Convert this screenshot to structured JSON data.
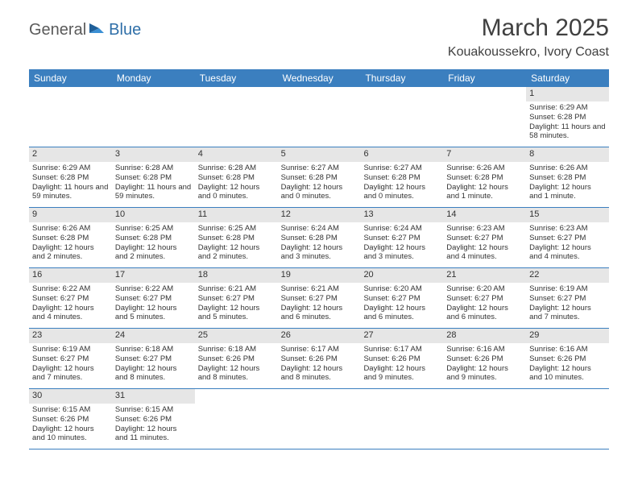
{
  "logo": {
    "text1": "General",
    "text2": "Blue"
  },
  "title": "March 2025",
  "location": "Kouakoussekro, Ivory Coast",
  "colors": {
    "header_bg": "#3b7fbf",
    "header_text": "#ffffff",
    "daynum_bg": "#e6e6e6",
    "border": "#3b7fbf",
    "body_text": "#333333",
    "logo_gray": "#5a5a5a",
    "logo_blue": "#2f6fa8"
  },
  "dayNames": [
    "Sunday",
    "Monday",
    "Tuesday",
    "Wednesday",
    "Thursday",
    "Friday",
    "Saturday"
  ],
  "weeks": [
    [
      null,
      null,
      null,
      null,
      null,
      null,
      {
        "n": "1",
        "sr": "Sunrise: 6:29 AM",
        "ss": "Sunset: 6:28 PM",
        "dl": "Daylight: 11 hours and 58 minutes."
      }
    ],
    [
      {
        "n": "2",
        "sr": "Sunrise: 6:29 AM",
        "ss": "Sunset: 6:28 PM",
        "dl": "Daylight: 11 hours and 59 minutes."
      },
      {
        "n": "3",
        "sr": "Sunrise: 6:28 AM",
        "ss": "Sunset: 6:28 PM",
        "dl": "Daylight: 11 hours and 59 minutes."
      },
      {
        "n": "4",
        "sr": "Sunrise: 6:28 AM",
        "ss": "Sunset: 6:28 PM",
        "dl": "Daylight: 12 hours and 0 minutes."
      },
      {
        "n": "5",
        "sr": "Sunrise: 6:27 AM",
        "ss": "Sunset: 6:28 PM",
        "dl": "Daylight: 12 hours and 0 minutes."
      },
      {
        "n": "6",
        "sr": "Sunrise: 6:27 AM",
        "ss": "Sunset: 6:28 PM",
        "dl": "Daylight: 12 hours and 0 minutes."
      },
      {
        "n": "7",
        "sr": "Sunrise: 6:26 AM",
        "ss": "Sunset: 6:28 PM",
        "dl": "Daylight: 12 hours and 1 minute."
      },
      {
        "n": "8",
        "sr": "Sunrise: 6:26 AM",
        "ss": "Sunset: 6:28 PM",
        "dl": "Daylight: 12 hours and 1 minute."
      }
    ],
    [
      {
        "n": "9",
        "sr": "Sunrise: 6:26 AM",
        "ss": "Sunset: 6:28 PM",
        "dl": "Daylight: 12 hours and 2 minutes."
      },
      {
        "n": "10",
        "sr": "Sunrise: 6:25 AM",
        "ss": "Sunset: 6:28 PM",
        "dl": "Daylight: 12 hours and 2 minutes."
      },
      {
        "n": "11",
        "sr": "Sunrise: 6:25 AM",
        "ss": "Sunset: 6:28 PM",
        "dl": "Daylight: 12 hours and 2 minutes."
      },
      {
        "n": "12",
        "sr": "Sunrise: 6:24 AM",
        "ss": "Sunset: 6:28 PM",
        "dl": "Daylight: 12 hours and 3 minutes."
      },
      {
        "n": "13",
        "sr": "Sunrise: 6:24 AM",
        "ss": "Sunset: 6:27 PM",
        "dl": "Daylight: 12 hours and 3 minutes."
      },
      {
        "n": "14",
        "sr": "Sunrise: 6:23 AM",
        "ss": "Sunset: 6:27 PM",
        "dl": "Daylight: 12 hours and 4 minutes."
      },
      {
        "n": "15",
        "sr": "Sunrise: 6:23 AM",
        "ss": "Sunset: 6:27 PM",
        "dl": "Daylight: 12 hours and 4 minutes."
      }
    ],
    [
      {
        "n": "16",
        "sr": "Sunrise: 6:22 AM",
        "ss": "Sunset: 6:27 PM",
        "dl": "Daylight: 12 hours and 4 minutes."
      },
      {
        "n": "17",
        "sr": "Sunrise: 6:22 AM",
        "ss": "Sunset: 6:27 PM",
        "dl": "Daylight: 12 hours and 5 minutes."
      },
      {
        "n": "18",
        "sr": "Sunrise: 6:21 AM",
        "ss": "Sunset: 6:27 PM",
        "dl": "Daylight: 12 hours and 5 minutes."
      },
      {
        "n": "19",
        "sr": "Sunrise: 6:21 AM",
        "ss": "Sunset: 6:27 PM",
        "dl": "Daylight: 12 hours and 6 minutes."
      },
      {
        "n": "20",
        "sr": "Sunrise: 6:20 AM",
        "ss": "Sunset: 6:27 PM",
        "dl": "Daylight: 12 hours and 6 minutes."
      },
      {
        "n": "21",
        "sr": "Sunrise: 6:20 AM",
        "ss": "Sunset: 6:27 PM",
        "dl": "Daylight: 12 hours and 6 minutes."
      },
      {
        "n": "22",
        "sr": "Sunrise: 6:19 AM",
        "ss": "Sunset: 6:27 PM",
        "dl": "Daylight: 12 hours and 7 minutes."
      }
    ],
    [
      {
        "n": "23",
        "sr": "Sunrise: 6:19 AM",
        "ss": "Sunset: 6:27 PM",
        "dl": "Daylight: 12 hours and 7 minutes."
      },
      {
        "n": "24",
        "sr": "Sunrise: 6:18 AM",
        "ss": "Sunset: 6:27 PM",
        "dl": "Daylight: 12 hours and 8 minutes."
      },
      {
        "n": "25",
        "sr": "Sunrise: 6:18 AM",
        "ss": "Sunset: 6:26 PM",
        "dl": "Daylight: 12 hours and 8 minutes."
      },
      {
        "n": "26",
        "sr": "Sunrise: 6:17 AM",
        "ss": "Sunset: 6:26 PM",
        "dl": "Daylight: 12 hours and 8 minutes."
      },
      {
        "n": "27",
        "sr": "Sunrise: 6:17 AM",
        "ss": "Sunset: 6:26 PM",
        "dl": "Daylight: 12 hours and 9 minutes."
      },
      {
        "n": "28",
        "sr": "Sunrise: 6:16 AM",
        "ss": "Sunset: 6:26 PM",
        "dl": "Daylight: 12 hours and 9 minutes."
      },
      {
        "n": "29",
        "sr": "Sunrise: 6:16 AM",
        "ss": "Sunset: 6:26 PM",
        "dl": "Daylight: 12 hours and 10 minutes."
      }
    ],
    [
      {
        "n": "30",
        "sr": "Sunrise: 6:15 AM",
        "ss": "Sunset: 6:26 PM",
        "dl": "Daylight: 12 hours and 10 minutes."
      },
      {
        "n": "31",
        "sr": "Sunrise: 6:15 AM",
        "ss": "Sunset: 6:26 PM",
        "dl": "Daylight: 12 hours and 11 minutes."
      },
      null,
      null,
      null,
      null,
      null
    ]
  ]
}
